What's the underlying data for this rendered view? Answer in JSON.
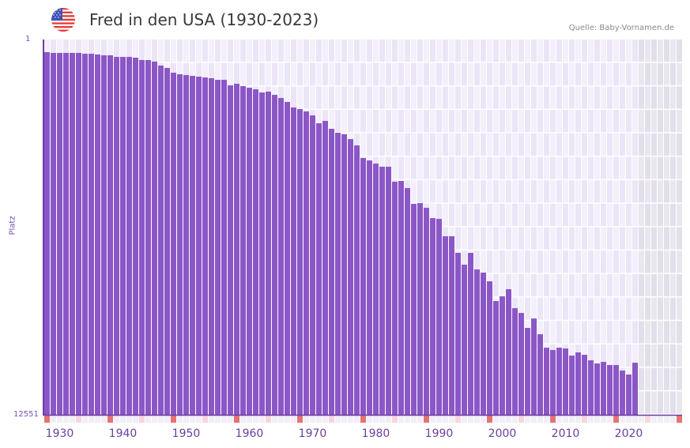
{
  "header": {
    "title": "Fred in den USA (1930-2023)",
    "source": "Quelle: Baby-Vornamen.de",
    "flag_icon": "us-flag-icon"
  },
  "y_axis": {
    "label": "Platz",
    "top_tick": "1",
    "bottom_tick": "12551"
  },
  "colors": {
    "bar": "#8b57c7",
    "axis": "#6a3fa0",
    "grid_bg_light": "#f3effb",
    "grid_bg_dark": "#ebe5f7",
    "future_bg": "#e3e0ec",
    "decade_marker": "#e57373",
    "half_decade_marker": "#f7d6de"
  },
  "chart_data": {
    "type": "bar",
    "title": "Fred in den USA (1930-2023)",
    "xlabel": "",
    "ylabel": "Platz",
    "y_inverted": true,
    "ylim": [
      12551,
      1
    ],
    "x_tick_labels": [
      "1930",
      "1940",
      "1950",
      "1960",
      "1970",
      "1980",
      "1990",
      "2000",
      "2010",
      "2020"
    ],
    "grid": true,
    "legend": null,
    "categories": [
      1928,
      1929,
      1930,
      1931,
      1932,
      1933,
      1934,
      1935,
      1936,
      1937,
      1938,
      1939,
      1940,
      1941,
      1942,
      1943,
      1944,
      1945,
      1946,
      1947,
      1948,
      1949,
      1950,
      1951,
      1952,
      1953,
      1954,
      1955,
      1956,
      1957,
      1958,
      1959,
      1960,
      1961,
      1962,
      1963,
      1964,
      1965,
      1966,
      1967,
      1968,
      1969,
      1970,
      1971,
      1972,
      1973,
      1974,
      1975,
      1976,
      1977,
      1978,
      1979,
      1980,
      1981,
      1982,
      1983,
      1984,
      1985,
      1986,
      1987,
      1988,
      1989,
      1990,
      1991,
      1992,
      1993,
      1994,
      1995,
      1996,
      1997,
      1998,
      1999,
      2000,
      2001,
      2002,
      2003,
      2004,
      2005,
      2006,
      2007,
      2008,
      2009,
      2010,
      2011,
      2012,
      2013,
      2014,
      2015,
      2016,
      2017,
      2018,
      2019,
      2020,
      2021
    ],
    "values": [
      424,
      450,
      450,
      450,
      450,
      450,
      476,
      476,
      503,
      529,
      529,
      582,
      582,
      582,
      608,
      688,
      688,
      740,
      873,
      952,
      1111,
      1164,
      1190,
      1217,
      1243,
      1270,
      1296,
      1349,
      1349,
      1534,
      1481,
      1560,
      1613,
      1666,
      1772,
      1745,
      1851,
      1957,
      2089,
      2274,
      2327,
      2406,
      2538,
      2802,
      2723,
      2987,
      3119,
      3172,
      3331,
      3542,
      3965,
      4044,
      4150,
      4255,
      4255,
      4757,
      4731,
      4969,
      5497,
      5471,
      5630,
      5973,
      5999,
      6580,
      6580,
      7135,
      7531,
      7135,
      7690,
      7796,
      8087,
      8747,
      8589,
      8351,
      8985,
      9144,
      9646,
      9329,
      9857,
      10306,
      10385,
      10306,
      10332,
      10570,
      10464,
      10544,
      10729,
      10834,
      10781,
      10887,
      10887,
      11072,
      11204,
      10808
    ],
    "future_shaded_from": 2022
  }
}
